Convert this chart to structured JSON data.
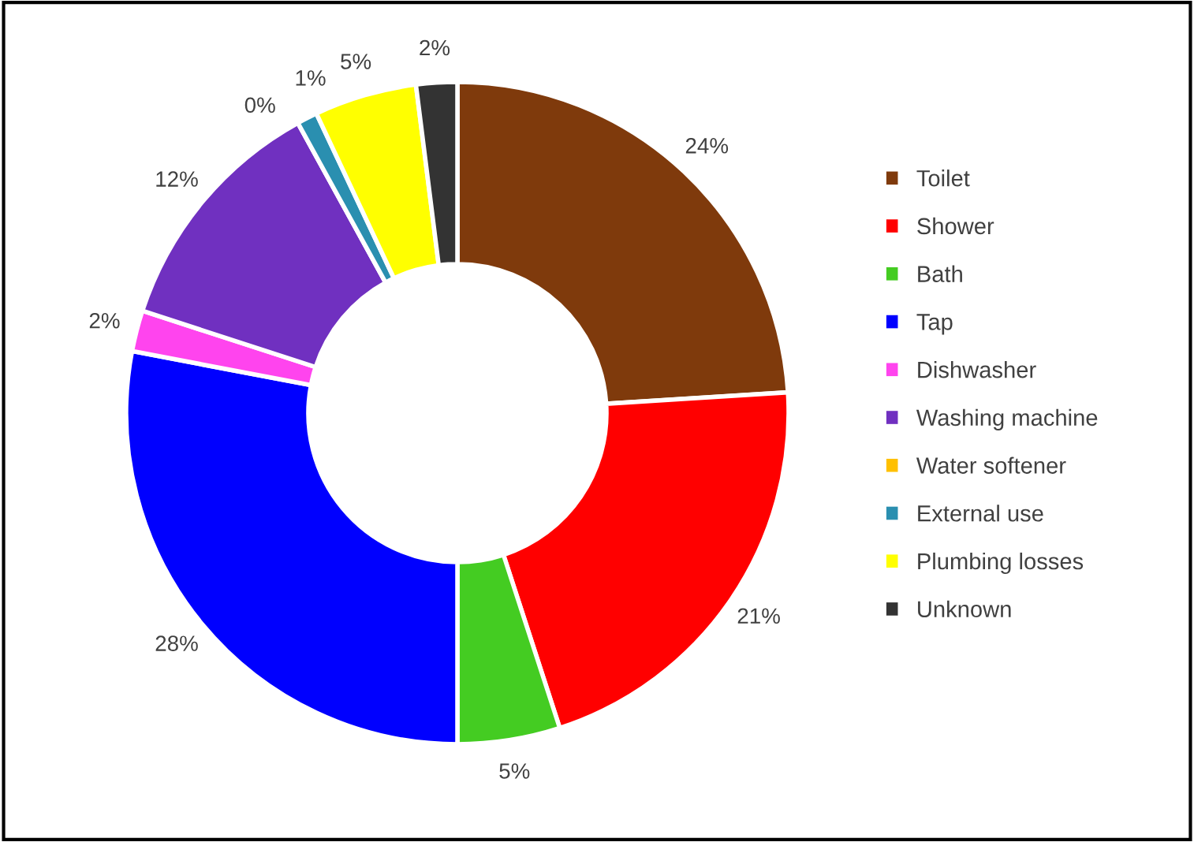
{
  "chart_data": {
    "type": "donut",
    "categories": [
      "Toilet",
      "Shower",
      "Bath",
      "Tap",
      "Dishwasher",
      "Washing machine",
      "Water softener",
      "External use",
      "Plumbing losses",
      "Unknown"
    ],
    "values": [
      24,
      21,
      5,
      28,
      2,
      12,
      0,
      1,
      5,
      2
    ],
    "colors": [
      "#7f3a0c",
      "#ff0000",
      "#44cc22",
      "#0000ff",
      "#ff44ee",
      "#7030c0",
      "#ffc000",
      "#2a8fb0",
      "#ffff00",
      "#333333"
    ],
    "value_labels": [
      "24%",
      "21%",
      "5%",
      "28%",
      "2%",
      "12%",
      "0%",
      "1%",
      "5%",
      "2%"
    ],
    "legend": "right"
  }
}
